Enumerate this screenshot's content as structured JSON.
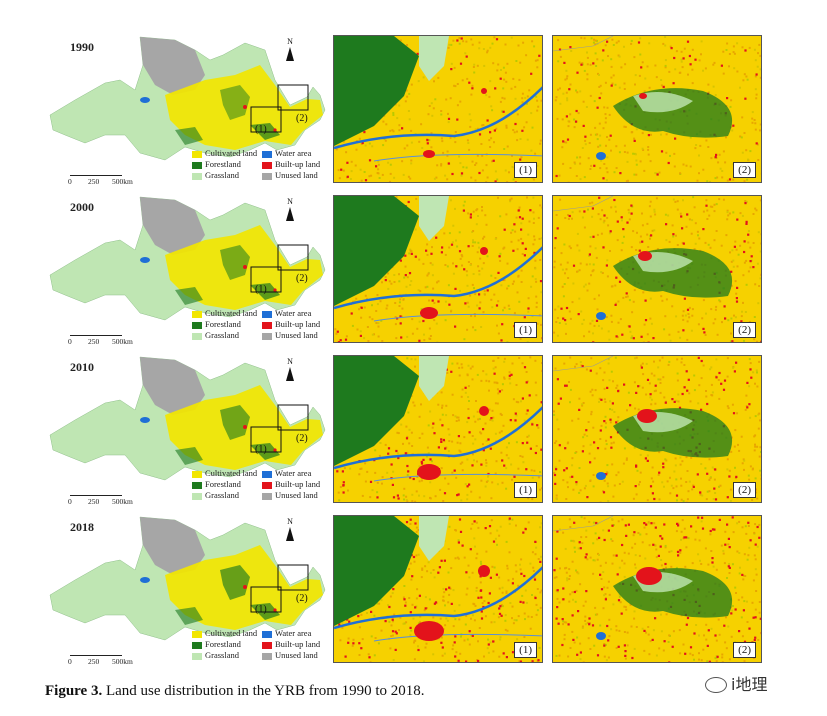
{
  "figure": {
    "caption_bold": "Figure 3.",
    "caption_text": " Land use distribution in the YRB from 1990 to 2018."
  },
  "legend": {
    "items": [
      {
        "label": "Cultivated land",
        "color": "#f2e600"
      },
      {
        "label": "Water area",
        "color": "#1f6fd6"
      },
      {
        "label": "Forestland",
        "color": "#1e7a1e"
      },
      {
        "label": "Built-up land",
        "color": "#e3131b"
      },
      {
        "label": "Grassland",
        "color": "#bfe6b3"
      },
      {
        "label": "Unused land",
        "color": "#a6a6a6"
      }
    ]
  },
  "scale": {
    "t0": "0",
    "t1": "250",
    "t2": "500km"
  },
  "north": "N",
  "box_labels": {
    "one": "(1)",
    "two": "(2)"
  },
  "rows": [
    {
      "year": "1990"
    },
    {
      "year": "2000"
    },
    {
      "year": "2010"
    },
    {
      "year": "2018"
    }
  ],
  "panel_labels": {
    "one": "(1)",
    "two": "(2)"
  },
  "watermark": "i地理"
}
